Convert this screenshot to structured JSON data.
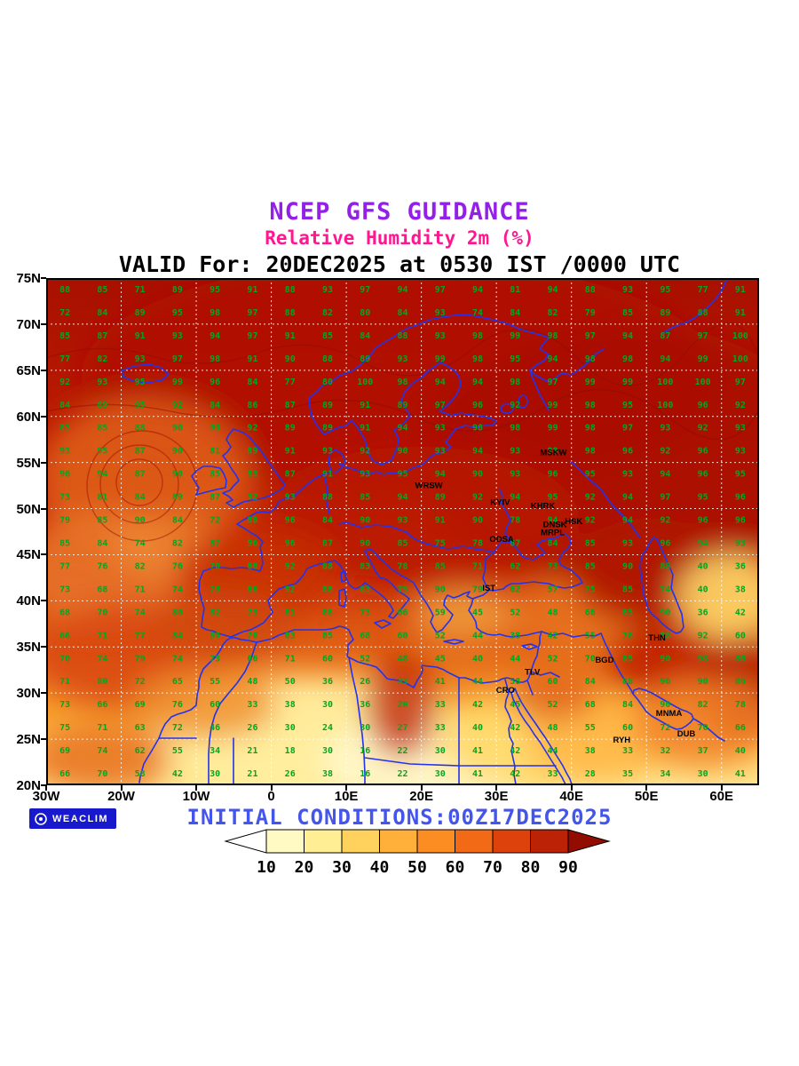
{
  "header": {
    "line1": "NCEP GFS GUIDANCE",
    "line2": "Relative Humidity 2m (%)",
    "line3": "VALID For: 20DEC2025 at 0530 IST /0000 UTC"
  },
  "footer": {
    "initial_conditions": "INITIAL CONDITIONS:00Z17DEC2025",
    "logo_text": "WEACLIM"
  },
  "colors": {
    "title1": "#9420E8",
    "title2": "#FF1690",
    "title3": "#000000",
    "footer_text": "#4455EE",
    "numbers": "#00A820",
    "coast": "#2233EE",
    "badge_bg": "#1818CC",
    "grid": "#FFFFFF"
  },
  "map": {
    "lon_min": -30,
    "lon_max": 65,
    "lat_min": 20,
    "lat_max": 75,
    "x_ticks": [
      {
        "label": "30W",
        "lon": -30
      },
      {
        "label": "20W",
        "lon": -20
      },
      {
        "label": "10W",
        "lon": -10
      },
      {
        "label": "0",
        "lon": 0
      },
      {
        "label": "10E",
        "lon": 10
      },
      {
        "label": "20E",
        "lon": 20
      },
      {
        "label": "30E",
        "lon": 30
      },
      {
        "label": "40E",
        "lon": 40
      },
      {
        "label": "50E",
        "lon": 50
      },
      {
        "label": "60E",
        "lon": 60
      }
    ],
    "y_ticks": [
      {
        "label": "75N",
        "lat": 75
      },
      {
        "label": "70N",
        "lat": 70
      },
      {
        "label": "65N",
        "lat": 65
      },
      {
        "label": "60N",
        "lat": 60
      },
      {
        "label": "55N",
        "lat": 55
      },
      {
        "label": "50N",
        "lat": 50
      },
      {
        "label": "45N",
        "lat": 45
      },
      {
        "label": "40N",
        "lat": 40
      },
      {
        "label": "35N",
        "lat": 35
      },
      {
        "label": "30N",
        "lat": 30
      },
      {
        "label": "25N",
        "lat": 25
      },
      {
        "label": "20N",
        "lat": 20
      }
    ],
    "cities": [
      {
        "name": "MSKW",
        "lon": 37.6,
        "lat": 55.8
      },
      {
        "name": "WRSW",
        "lon": 21.0,
        "lat": 52.2
      },
      {
        "name": "KYIV",
        "lon": 30.5,
        "lat": 50.4
      },
      {
        "name": "KHRK",
        "lon": 36.2,
        "lat": 50.0
      },
      {
        "name": "DNSK",
        "lon": 37.8,
        "lat": 48.0
      },
      {
        "name": "HSK",
        "lon": 40.3,
        "lat": 48.3
      },
      {
        "name": "MRPL",
        "lon": 37.5,
        "lat": 47.1
      },
      {
        "name": "ODSA",
        "lon": 30.7,
        "lat": 46.4
      },
      {
        "name": "IST",
        "lon": 29.0,
        "lat": 41.1
      },
      {
        "name": "THN",
        "lon": 51.4,
        "lat": 35.7
      },
      {
        "name": "BGD",
        "lon": 44.4,
        "lat": 33.3
      },
      {
        "name": "TLV",
        "lon": 34.8,
        "lat": 32.0
      },
      {
        "name": "CRO",
        "lon": 31.2,
        "lat": 30.0
      },
      {
        "name": "MNMA",
        "lon": 53.0,
        "lat": 27.5
      },
      {
        "name": "RYH",
        "lon": 46.7,
        "lat": 24.6
      },
      {
        "name": "DUB",
        "lon": 55.3,
        "lat": 25.3
      }
    ]
  },
  "chart_data": {
    "type": "heatmap",
    "title": "Relative Humidity 2m (%)",
    "units": "%",
    "lon_start": -27.5,
    "lon_step": 5,
    "lat_start": 73.75,
    "lat_step": -2.5,
    "values": [
      [
        88,
        85,
        71,
        89,
        95,
        91,
        88,
        93,
        97,
        94,
        97,
        94,
        81,
        94,
        88,
        93,
        95,
        77,
        91
      ],
      [
        72,
        84,
        89,
        95,
        98,
        97,
        88,
        82,
        80,
        84,
        93,
        74,
        84,
        82,
        79,
        85,
        89,
        88,
        91
      ],
      [
        85,
        87,
        91,
        93,
        94,
        97,
        91,
        85,
        84,
        88,
        93,
        98,
        99,
        98,
        97,
        94,
        87,
        97,
        100
      ],
      [
        77,
        82,
        93,
        97,
        98,
        91,
        90,
        88,
        89,
        93,
        99,
        98,
        95,
        94,
        98,
        98,
        94,
        99,
        100
      ],
      [
        92,
        93,
        95,
        99,
        96,
        84,
        77,
        80,
        100,
        98,
        94,
        94,
        98,
        97,
        99,
        99,
        100,
        100,
        97
      ],
      [
        84,
        89,
        95,
        92,
        84,
        86,
        87,
        89,
        91,
        89,
        97,
        96,
        92,
        99,
        98,
        95,
        100,
        96,
        92
      ],
      [
        83,
        85,
        88,
        90,
        90,
        92,
        89,
        89,
        91,
        94,
        93,
        98,
        98,
        99,
        98,
        97,
        93,
        92,
        93
      ],
      [
        93,
        95,
        87,
        90,
        81,
        89,
        91,
        93,
        92,
        90,
        93,
        94,
        93,
        98,
        98,
        96,
        92,
        96,
        93
      ],
      [
        96,
        94,
        87,
        90,
        85,
        83,
        87,
        91,
        93,
        95,
        94,
        90,
        93,
        96,
        95,
        93,
        94,
        96,
        95
      ],
      [
        73,
        81,
        84,
        89,
        87,
        92,
        93,
        88,
        85,
        94,
        89,
        92,
        94,
        95,
        92,
        94,
        97,
        95,
        96
      ],
      [
        79,
        85,
        90,
        84,
        72,
        88,
        96,
        84,
        90,
        93,
        91,
        90,
        78,
        94,
        92,
        94,
        92,
        96,
        96
      ],
      [
        85,
        84,
        74,
        82,
        87,
        96,
        96,
        87,
        90,
        85,
        75,
        78,
        87,
        84,
        85,
        93,
        96,
        94,
        93
      ],
      [
        77,
        76,
        82,
        76,
        70,
        68,
        92,
        88,
        83,
        78,
        85,
        71,
        62,
        73,
        85,
        90,
        88,
        40,
        36
      ],
      [
        73,
        68,
        71,
        74,
        78,
        66,
        92,
        88,
        83,
        75,
        90,
        79,
        62,
        57,
        75,
        85,
        74,
        40,
        38
      ],
      [
        68,
        70,
        74,
        80,
        82,
        73,
        81,
        88,
        73,
        66,
        59,
        45,
        52,
        48,
        66,
        85,
        90,
        36,
        42
      ],
      [
        66,
        71,
        77,
        84,
        80,
        76,
        83,
        85,
        68,
        60,
        52,
        44,
        38,
        42,
        55,
        78,
        88,
        92,
        60
      ],
      [
        70,
        74,
        79,
        74,
        73,
        66,
        71,
        60,
        52,
        48,
        45,
        40,
        44,
        52,
        70,
        85,
        90,
        98,
        86
      ],
      [
        71,
        80,
        72,
        65,
        55,
        48,
        50,
        36,
        26,
        33,
        41,
        44,
        58,
        60,
        84,
        88,
        96,
        90,
        86
      ],
      [
        73,
        66,
        69,
        76,
        60,
        33,
        38,
        30,
        36,
        20,
        33,
        42,
        45,
        52,
        68,
        84,
        90,
        82,
        78
      ],
      [
        75,
        71,
        63,
        72,
        46,
        26,
        30,
        24,
        30,
        27,
        33,
        40,
        42,
        48,
        55,
        60,
        72,
        70,
        66
      ],
      [
        69,
        74,
        62,
        55,
        34,
        21,
        18,
        30,
        16,
        22,
        30,
        41,
        42,
        44,
        38,
        33,
        32,
        37,
        40
      ],
      [
        66,
        70,
        58,
        42,
        30,
        21,
        26,
        38,
        16,
        22,
        30,
        41,
        42,
        33,
        28,
        35,
        34,
        30,
        41
      ]
    ]
  },
  "colorbar": {
    "labels": [
      "10",
      "20",
      "30",
      "40",
      "50",
      "60",
      "70",
      "80",
      "90"
    ],
    "colors": [
      "#FFFFFF",
      "#FFFAC3",
      "#FFEE94",
      "#FFD25E",
      "#FFB03A",
      "#FC8D23",
      "#F26916",
      "#DE420C",
      "#BC2205",
      "#930C00"
    ]
  }
}
